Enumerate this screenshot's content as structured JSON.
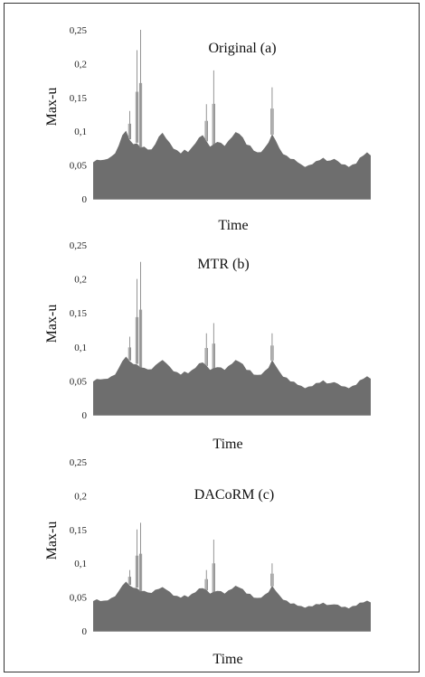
{
  "chart_data": [
    {
      "type": "area",
      "title": "Original (a)",
      "xlabel": "Time",
      "ylabel": "Max-u",
      "ylim": [
        0,
        0.25
      ],
      "yticks": [
        "0",
        "0,05",
        "0,1",
        "0,15",
        "0,2",
        "0,25"
      ],
      "grid": false,
      "values": [
        0.055,
        0.057,
        0.058,
        0.057,
        0.06,
        0.062,
        0.068,
        0.078,
        0.095,
        0.1,
        0.088,
        0.08,
        0.083,
        0.075,
        0.078,
        0.072,
        0.074,
        0.08,
        0.093,
        0.097,
        0.09,
        0.082,
        0.075,
        0.071,
        0.068,
        0.072,
        0.07,
        0.075,
        0.083,
        0.09,
        0.095,
        0.085,
        0.078,
        0.08,
        0.085,
        0.082,
        0.079,
        0.085,
        0.092,
        0.098,
        0.097,
        0.09,
        0.081,
        0.078,
        0.072,
        0.068,
        0.07,
        0.075,
        0.084,
        0.095,
        0.087,
        0.074,
        0.067,
        0.063,
        0.06,
        0.058,
        0.055,
        0.05,
        0.048,
        0.049,
        0.052,
        0.055,
        0.058,
        0.06,
        0.057,
        0.056,
        0.06,
        0.055,
        0.052,
        0.05,
        0.048,
        0.05,
        0.053,
        0.06,
        0.065,
        0.068,
        0.065
      ],
      "spikes": [
        {
          "i": 10,
          "v": 0.13
        },
        {
          "i": 12,
          "v": 0.22
        },
        {
          "i": 13,
          "v": 0.25
        },
        {
          "i": 31,
          "v": 0.14
        },
        {
          "i": 33,
          "v": 0.19
        },
        {
          "i": 49,
          "v": 0.165
        }
      ]
    },
    {
      "type": "area",
      "title": "MTR (b)",
      "xlabel": "Time",
      "ylabel": "Max-u",
      "ylim": [
        0,
        0.25
      ],
      "yticks": [
        "0",
        "0,05",
        "0,1",
        "0,15",
        "0,2",
        "0,25"
      ],
      "grid": false,
      "values": [
        0.05,
        0.052,
        0.053,
        0.052,
        0.054,
        0.056,
        0.06,
        0.068,
        0.08,
        0.085,
        0.08,
        0.074,
        0.075,
        0.069,
        0.07,
        0.066,
        0.068,
        0.072,
        0.078,
        0.08,
        0.077,
        0.07,
        0.065,
        0.062,
        0.06,
        0.063,
        0.062,
        0.065,
        0.07,
        0.075,
        0.078,
        0.072,
        0.067,
        0.068,
        0.071,
        0.069,
        0.067,
        0.071,
        0.076,
        0.08,
        0.079,
        0.074,
        0.067,
        0.065,
        0.06,
        0.058,
        0.06,
        0.064,
        0.07,
        0.08,
        0.073,
        0.063,
        0.057,
        0.054,
        0.05,
        0.048,
        0.045,
        0.042,
        0.04,
        0.041,
        0.043,
        0.046,
        0.048,
        0.05,
        0.047,
        0.046,
        0.049,
        0.045,
        0.043,
        0.041,
        0.04,
        0.042,
        0.045,
        0.05,
        0.054,
        0.056,
        0.054
      ],
      "spikes": [
        {
          "i": 10,
          "v": 0.115
        },
        {
          "i": 12,
          "v": 0.2
        },
        {
          "i": 13,
          "v": 0.225
        },
        {
          "i": 31,
          "v": 0.12
        },
        {
          "i": 33,
          "v": 0.135
        },
        {
          "i": 49,
          "v": 0.12
        }
      ]
    },
    {
      "type": "area",
      "title": "DACoRM (c)",
      "xlabel": "Time",
      "ylabel": "Max-u",
      "ylim": [
        0,
        0.25
      ],
      "yticks": [
        "0",
        "0,05",
        "0,1",
        "0,15",
        "0,2",
        "0,25"
      ],
      "grid": false,
      "values": [
        0.045,
        0.046,
        0.045,
        0.044,
        0.046,
        0.048,
        0.052,
        0.058,
        0.068,
        0.072,
        0.068,
        0.063,
        0.064,
        0.058,
        0.06,
        0.056,
        0.057,
        0.06,
        0.063,
        0.064,
        0.062,
        0.057,
        0.053,
        0.051,
        0.05,
        0.052,
        0.051,
        0.054,
        0.058,
        0.062,
        0.064,
        0.06,
        0.056,
        0.057,
        0.06,
        0.058,
        0.056,
        0.059,
        0.063,
        0.066,
        0.065,
        0.061,
        0.056,
        0.054,
        0.05,
        0.048,
        0.05,
        0.053,
        0.058,
        0.066,
        0.06,
        0.052,
        0.047,
        0.044,
        0.041,
        0.04,
        0.038,
        0.036,
        0.035,
        0.036,
        0.037,
        0.039,
        0.04,
        0.041,
        0.039,
        0.038,
        0.04,
        0.038,
        0.036,
        0.035,
        0.034,
        0.036,
        0.038,
        0.041,
        0.043,
        0.044,
        0.043
      ],
      "spikes": [
        {
          "i": 10,
          "v": 0.09
        },
        {
          "i": 12,
          "v": 0.15
        },
        {
          "i": 13,
          "v": 0.16
        },
        {
          "i": 31,
          "v": 0.09
        },
        {
          "i": 33,
          "v": 0.135
        },
        {
          "i": 49,
          "v": 0.1
        }
      ]
    }
  ]
}
